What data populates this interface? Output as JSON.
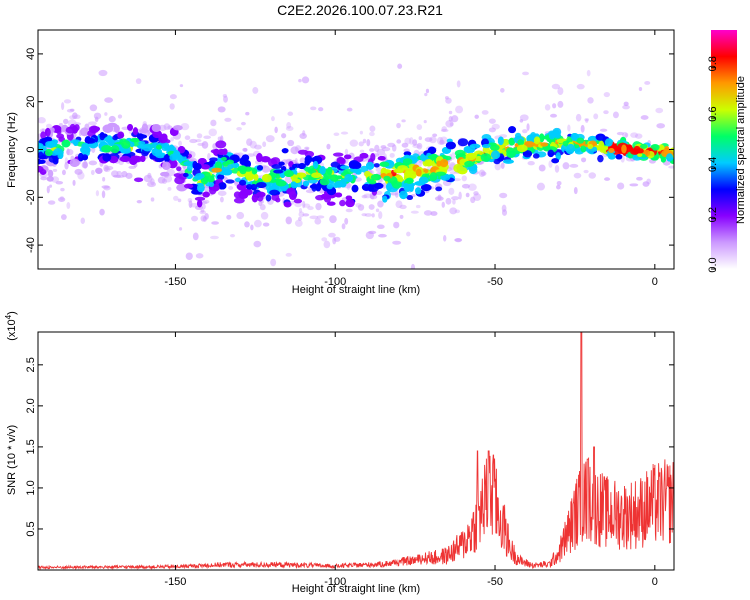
{
  "title": "C2E2.2026.100.07.23.R21",
  "chart_data": [
    {
      "type": "heatmap",
      "name": "spectrogram",
      "xlabel": "Height of straight line (km)",
      "ylabel": "Frequency (Hz)",
      "xlim": [
        -193,
        6
      ],
      "ylim": [
        -50,
        50
      ],
      "xticks": [
        -150,
        -100,
        -50,
        0
      ],
      "yticks": [
        -40,
        -20,
        0,
        20,
        40
      ],
      "ridge": {
        "x": [
          -193,
          -175,
          -160,
          -150,
          -142,
          -135,
          -125,
          -115,
          -108,
          -100,
          -90,
          -80,
          -70,
          -60,
          -50,
          -40,
          -30,
          -20,
          -10,
          0,
          6
        ],
        "y": [
          0,
          1,
          2,
          -2,
          -14,
          -6,
          -12,
          -13,
          -10,
          -12,
          -11,
          -10,
          -8,
          -5,
          0,
          2,
          3,
          2,
          0,
          -1,
          -1
        ]
      },
      "colorbar": {
        "label": "Normalized spectral amplitude",
        "range": [
          0,
          0.95
        ],
        "ticks": [
          "0.0",
          "0.2",
          "0.4",
          "0.6",
          "0.8"
        ],
        "colors": [
          "#ffffff",
          "#cc99ff",
          "#8800ff",
          "#0000ff",
          "#00ccff",
          "#00ff66",
          "#ccff00",
          "#ff9900",
          "#ff0000",
          "#ff00cc"
        ]
      }
    },
    {
      "type": "line",
      "name": "snr",
      "xlabel": "Height of straight line (km)",
      "ylabel": "SNR (10 * v/v)",
      "ymultiplier": "(x10",
      "ymultiplier_exp": "4",
      "ymultiplier_close": ")",
      "xlim": [
        -193,
        6
      ],
      "ylim": [
        0,
        2.9
      ],
      "xticks": [
        -150,
        -100,
        -50,
        0
      ],
      "yticks": [
        "0.5",
        "1.0",
        "1.5",
        "2.0",
        "2.5"
      ],
      "ytick_values": [
        0.5,
        1.0,
        1.5,
        2.0,
        2.5
      ],
      "color": "#ee3333",
      "envelope": {
        "x": [
          -193,
          -150,
          -135,
          -115,
          -100,
          -85,
          -75,
          -65,
          -60,
          -57,
          -55,
          -53,
          -51,
          -49,
          -47,
          -45,
          -42,
          -38,
          -33,
          -30,
          -28,
          -26,
          -25,
          -24,
          -23,
          -22,
          -20,
          -18,
          -15,
          -10,
          -5,
          0,
          6
        ],
        "y": [
          0.04,
          0.05,
          0.08,
          0.08,
          0.06,
          0.09,
          0.15,
          0.25,
          0.45,
          0.7,
          0.95,
          1.2,
          1.35,
          1.0,
          0.7,
          0.35,
          0.15,
          0.08,
          0.1,
          0.3,
          0.55,
          0.8,
          0.95,
          1.05,
          1.1,
          1.2,
          1.25,
          1.1,
          1.0,
          0.95,
          1.0,
          1.15,
          1.2
        ]
      },
      "peaks": [
        {
          "x": -55.5,
          "y": 1.45
        },
        {
          "x": -52.0,
          "y": 1.45
        },
        {
          "x": -50.5,
          "y": 1.4
        },
        {
          "x": -23.0,
          "y": 2.95
        },
        {
          "x": -21.0,
          "y": 1.35
        },
        {
          "x": -19.0,
          "y": 1.5
        }
      ]
    }
  ]
}
